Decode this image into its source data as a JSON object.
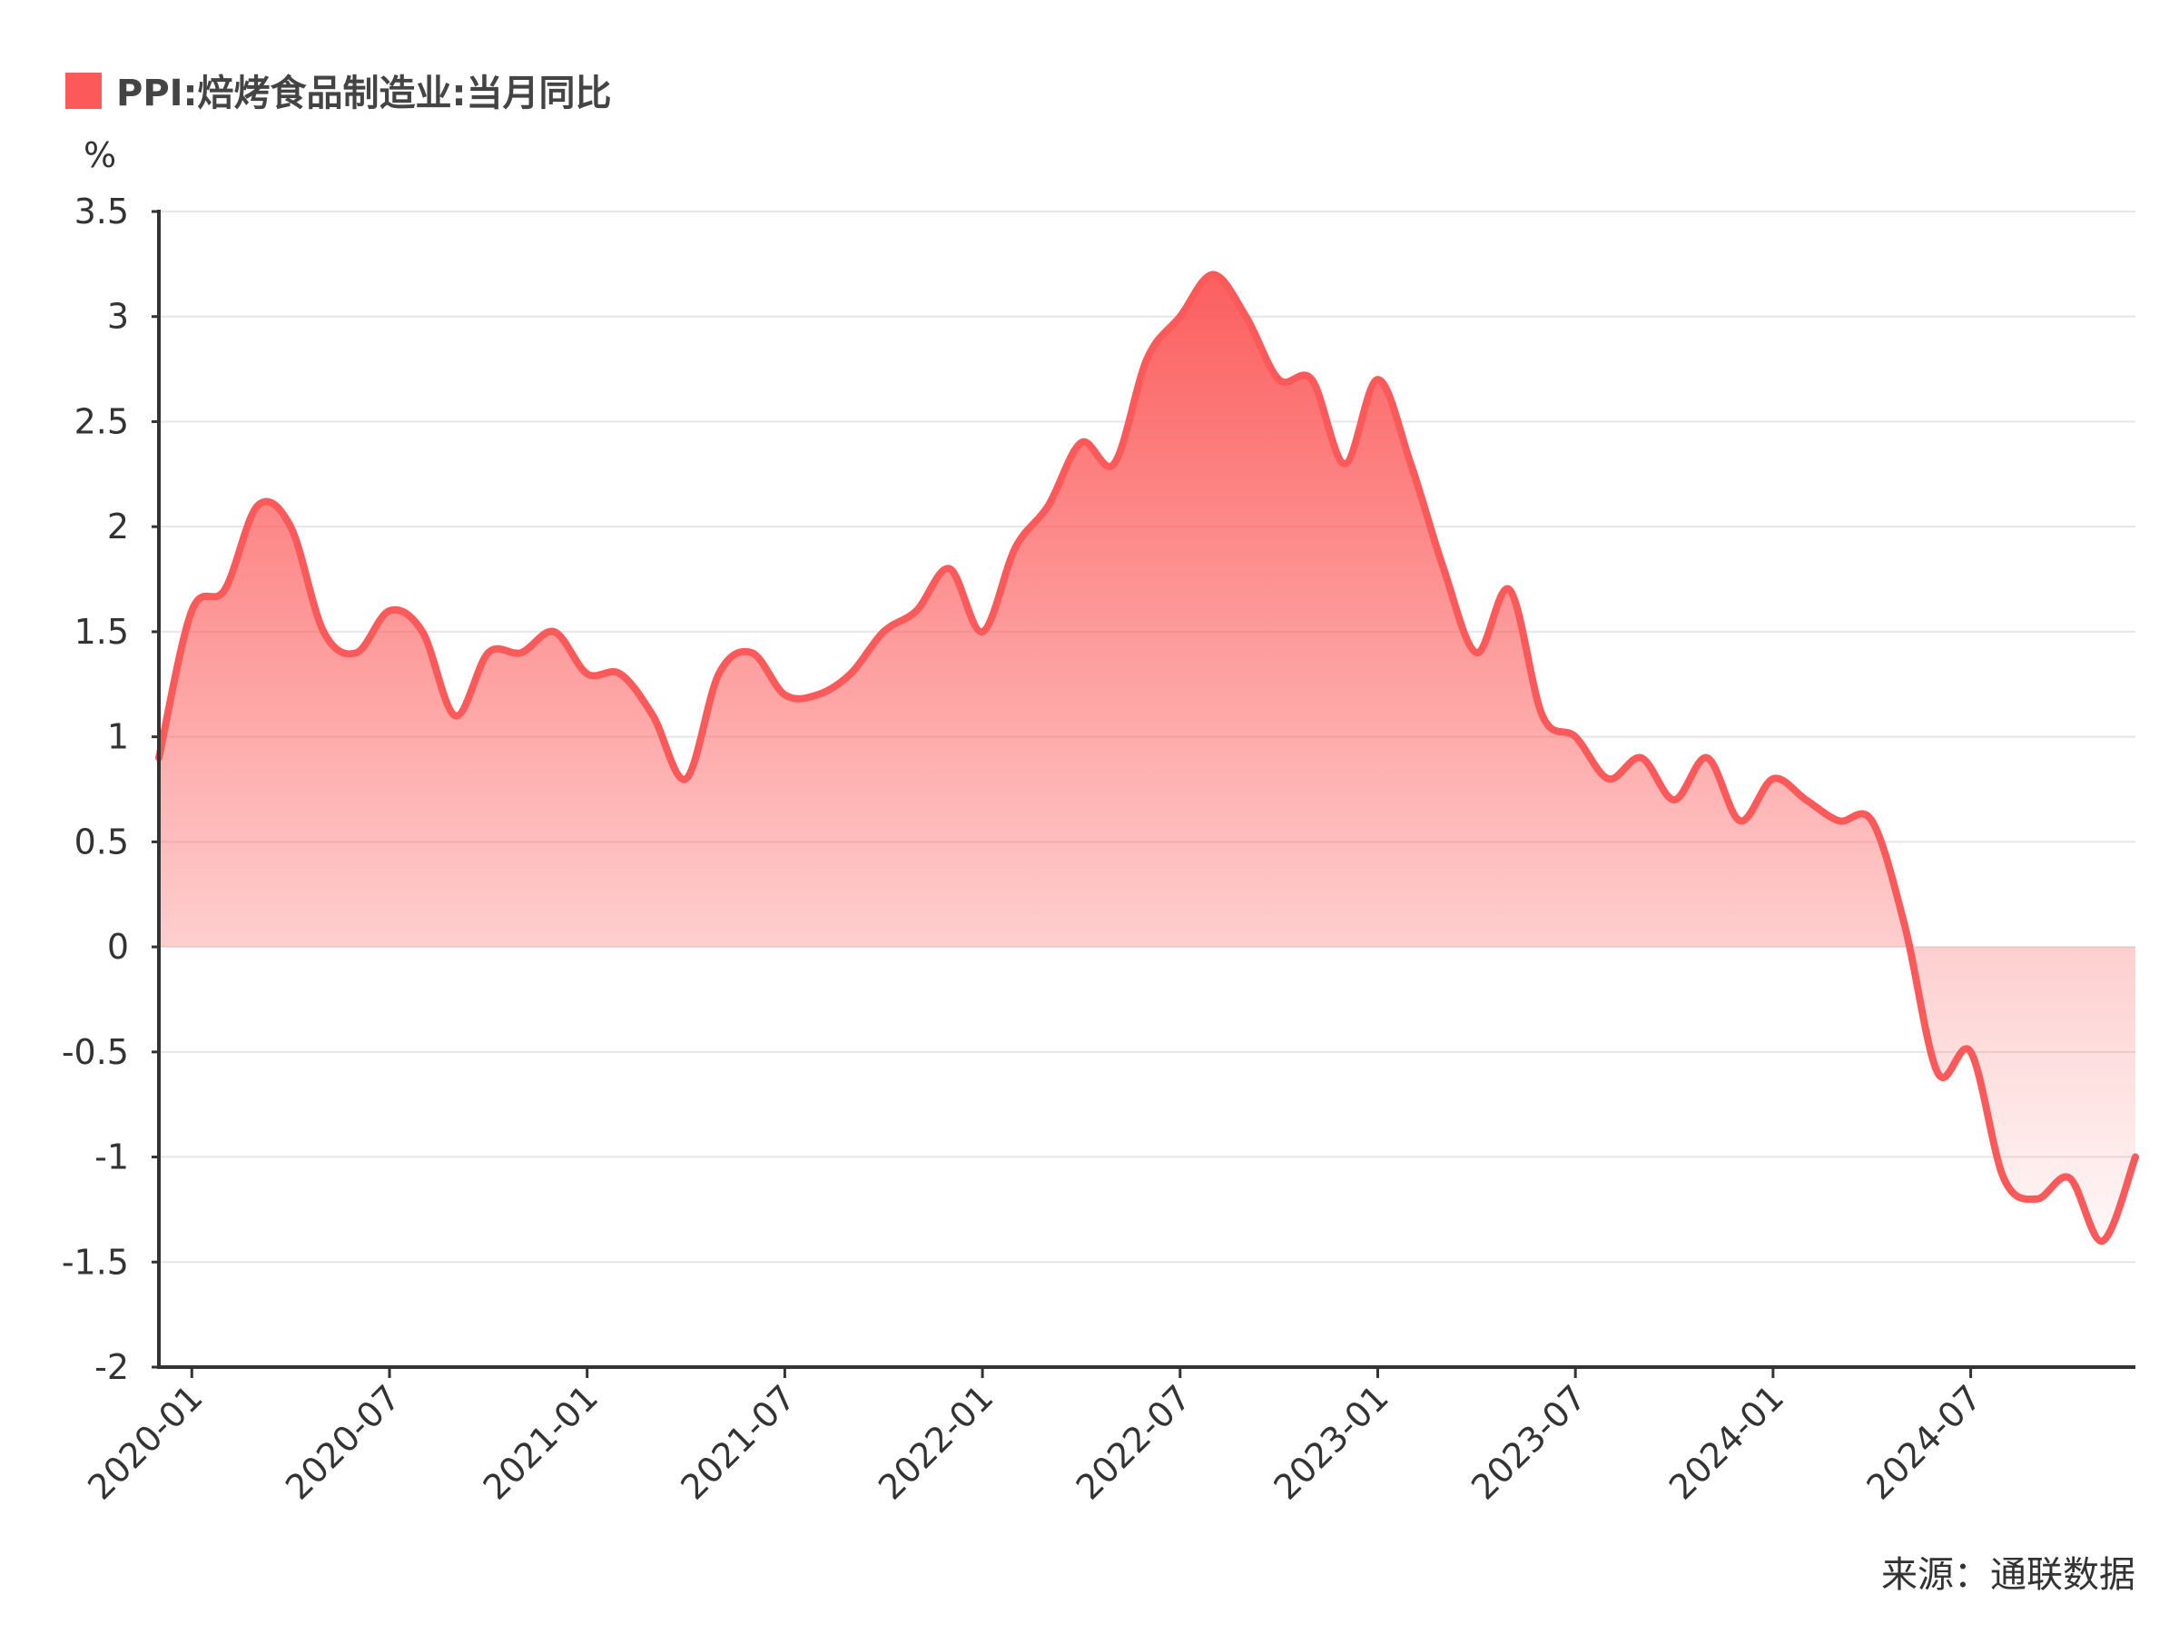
{
  "chart_data": {
    "type": "area",
    "legend": [
      {
        "label": "PPI:焙烤食品制造业:当月同比",
        "color": "#fc5a5a"
      }
    ],
    "ylabel": "%",
    "ylim": [
      -2,
      3.5
    ],
    "yticks": [
      "3.5",
      "3",
      "2.5",
      "2",
      "1.5",
      "1",
      "0.5",
      "0",
      "-0.5",
      "-1",
      "-1.5",
      "-2"
    ],
    "ytick_values": [
      3.5,
      3,
      2.5,
      2,
      1.5,
      1,
      0.5,
      0,
      -0.5,
      -1,
      -1.5,
      -2
    ],
    "xticks": [
      "2020-01",
      "2020-07",
      "2021-01",
      "2021-07",
      "2022-01",
      "2022-07",
      "2023-01",
      "2023-07",
      "2024-01",
      "2024-07"
    ],
    "x": [
      "2019-12",
      "2020-01",
      "2020-02",
      "2020-03",
      "2020-04",
      "2020-05",
      "2020-06",
      "2020-07",
      "2020-08",
      "2020-09",
      "2020-10",
      "2020-11",
      "2020-12",
      "2021-01",
      "2021-02",
      "2021-03",
      "2021-04",
      "2021-05",
      "2021-06",
      "2021-07",
      "2021-08",
      "2021-09",
      "2021-10",
      "2021-11",
      "2021-12",
      "2022-01",
      "2022-02",
      "2022-03",
      "2022-04",
      "2022-05",
      "2022-06",
      "2022-07",
      "2022-08",
      "2022-09",
      "2022-10",
      "2022-11",
      "2022-12",
      "2023-01",
      "2023-02",
      "2023-03",
      "2023-04",
      "2023-05",
      "2023-06",
      "2023-07",
      "2023-08",
      "2023-09",
      "2023-10",
      "2023-11",
      "2023-12",
      "2024-01",
      "2024-02",
      "2024-03",
      "2024-04",
      "2024-05",
      "2024-06",
      "2024-07",
      "2024-08",
      "2024-09",
      "2024-10",
      "2024-11",
      "2024-12"
    ],
    "series": [
      {
        "name": "PPI:焙烤食品制造业:当月同比",
        "color": "#fc5a5a",
        "values": [
          0.9,
          1.6,
          1.7,
          2.1,
          2.0,
          1.5,
          1.4,
          1.6,
          1.5,
          1.1,
          1.4,
          1.4,
          1.5,
          1.3,
          1.3,
          1.1,
          0.8,
          1.3,
          1.4,
          1.2,
          1.2,
          1.3,
          1.5,
          1.6,
          1.8,
          1.5,
          1.9,
          2.1,
          2.4,
          2.3,
          2.8,
          3.0,
          3.2,
          3.0,
          2.7,
          2.7,
          2.3,
          2.7,
          2.3,
          1.8,
          1.4,
          1.7,
          1.1,
          1.0,
          0.8,
          0.9,
          0.7,
          0.9,
          0.6,
          0.8,
          0.7,
          0.6,
          0.6,
          0.1,
          -0.6,
          -0.5,
          -1.1,
          -1.2,
          -1.1,
          -1.4,
          -1.0
        ]
      }
    ],
    "grid": true,
    "source_note": "来源：通联数据"
  }
}
